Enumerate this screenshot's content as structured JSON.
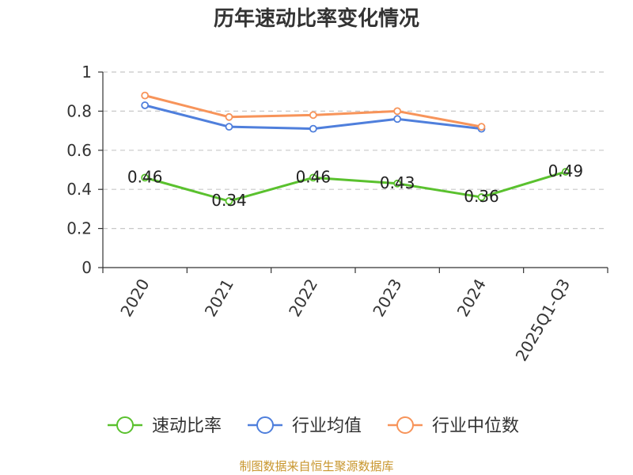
{
  "chart_data": {
    "type": "line",
    "title": "历年速动比率变化情况",
    "categories": [
      "2020",
      "2021",
      "2022",
      "2023",
      "2024",
      "2025Q1-Q3"
    ],
    "ylim": [
      0,
      1
    ],
    "yticks": [
      0,
      0.2,
      0.4,
      0.6,
      0.8,
      1
    ],
    "ytick_labels": [
      "0",
      "0.2",
      "0.4",
      "0.6",
      "0.8",
      "1"
    ],
    "grid": true,
    "legend_position": "bottom",
    "series": [
      {
        "name": "速动比率",
        "color": "#5ac12e",
        "show_labels": true,
        "values": [
          0.46,
          0.34,
          0.46,
          0.43,
          0.36,
          0.49
        ],
        "labels": [
          "0.46",
          "0.34",
          "0.46",
          "0.43",
          "0.36",
          "0.49"
        ]
      },
      {
        "name": "行业均值",
        "color": "#4f7fdc",
        "show_labels": false,
        "values": [
          0.83,
          0.72,
          0.71,
          0.76,
          0.71,
          null
        ]
      },
      {
        "name": "行业中位数",
        "color": "#f7945a",
        "show_labels": false,
        "values": [
          0.88,
          0.77,
          0.78,
          0.8,
          0.72,
          null
        ]
      }
    ]
  },
  "source_note": "制图数据来自恒生聚源数据库"
}
